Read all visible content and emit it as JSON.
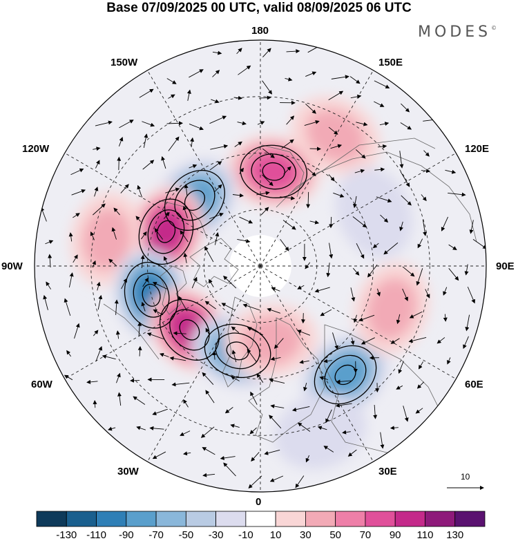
{
  "title": "Base 07/09/2025 00 UTC, valid 08/09/2025 06 UTC",
  "brand": "MODES",
  "brand_mark": "©",
  "longitudes": {
    "top": "180",
    "bottom": "0",
    "left": "90W",
    "right": "90E",
    "ul1": "150W",
    "ul2": "120W",
    "ur1": "150E",
    "ur2": "120E",
    "ll1": "60W",
    "ll2": "30W",
    "lr1": "60E",
    "lr2": "30E"
  },
  "vector_scale_label": "10",
  "colorbar": {
    "labels": [
      "-130",
      "-110",
      "-90",
      "-70",
      "-50",
      "-30",
      "-10",
      "10",
      "30",
      "50",
      "70",
      "90",
      "110",
      "130"
    ],
    "colors": [
      "#0e3a5a",
      "#1a5f8e",
      "#2f7fb6",
      "#5a9fcc",
      "#8ab7da",
      "#b9cbe3",
      "#dcdcee",
      "#ffffff",
      "#f9d6d6",
      "#f2aab6",
      "#ee7fa8",
      "#e0509a",
      "#c42a8a",
      "#8e1a7a",
      "#5a1270"
    ]
  },
  "anomalies": [
    {
      "lon": 172,
      "colat": 38,
      "value": 70
    },
    {
      "lon": 150,
      "colat": 60,
      "value": 30
    },
    {
      "lon": -135,
      "colat": 37,
      "value": -70
    },
    {
      "lon": -110,
      "colat": 40,
      "value": 90
    },
    {
      "lon": -100,
      "colat": 62,
      "value": 30
    },
    {
      "lon": -75,
      "colat": 45,
      "value": -90
    },
    {
      "lon": -48,
      "colat": 38,
      "value": 90
    },
    {
      "lon": -15,
      "colat": 35,
      "value": -70
    },
    {
      "lon": 8,
      "colat": 30,
      "value": 30
    },
    {
      "lon": 38,
      "colat": 55,
      "value": -70
    },
    {
      "lon": 72,
      "colat": 55,
      "value": 30
    },
    {
      "lon": 115,
      "colat": 50,
      "value": -10
    },
    {
      "lon": 20,
      "colat": 70,
      "value": -10
    }
  ]
}
